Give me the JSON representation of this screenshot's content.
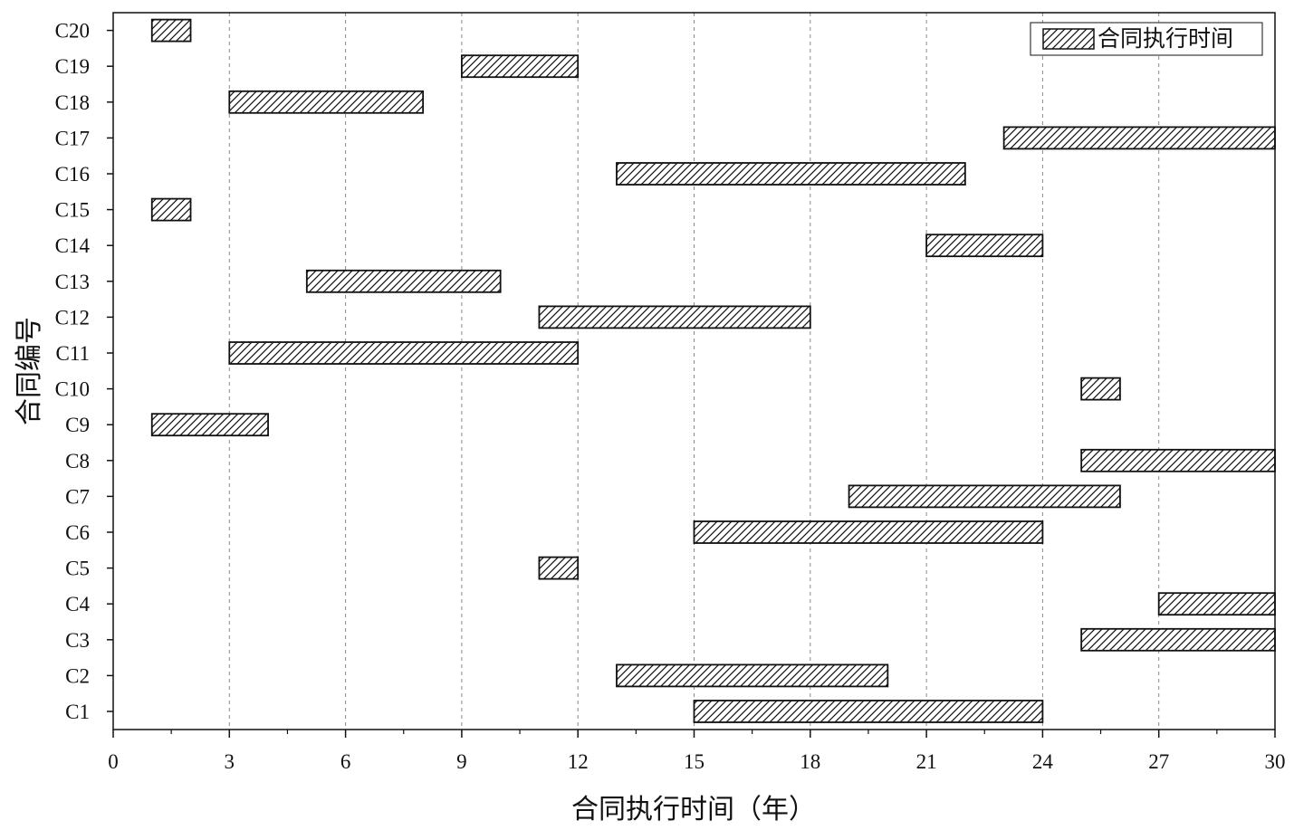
{
  "chart_data": {
    "type": "bar",
    "orientation": "horizontal-range",
    "xlabel": "合同执行时间（年）",
    "ylabel": "合同编号",
    "xlim": [
      0,
      30
    ],
    "xticks": [
      0,
      3,
      6,
      9,
      12,
      15,
      18,
      21,
      24,
      27,
      30
    ],
    "grid": "vertical dashed",
    "legend_position": "top-right",
    "series": [
      {
        "name": "合同执行时间",
        "fill": "diagonal-hatch",
        "data": [
          {
            "label": "C1",
            "start": 15,
            "end": 24
          },
          {
            "label": "C2",
            "start": 13,
            "end": 20
          },
          {
            "label": "C3",
            "start": 25,
            "end": 30
          },
          {
            "label": "C4",
            "start": 27,
            "end": 30
          },
          {
            "label": "C5",
            "start": 11,
            "end": 12
          },
          {
            "label": "C6",
            "start": 15,
            "end": 24
          },
          {
            "label": "C7",
            "start": 19,
            "end": 26
          },
          {
            "label": "C8",
            "start": 25,
            "end": 30
          },
          {
            "label": "C9",
            "start": 1,
            "end": 4
          },
          {
            "label": "C10",
            "start": 25,
            "end": 26
          },
          {
            "label": "C11",
            "start": 3,
            "end": 12
          },
          {
            "label": "C12",
            "start": 11,
            "end": 18
          },
          {
            "label": "C13",
            "start": 5,
            "end": 10
          },
          {
            "label": "C14",
            "start": 21,
            "end": 24
          },
          {
            "label": "C15",
            "start": 1,
            "end": 2
          },
          {
            "label": "C16",
            "start": 13,
            "end": 22
          },
          {
            "label": "C17",
            "start": 23,
            "end": 30
          },
          {
            "label": "C18",
            "start": 3,
            "end": 8
          },
          {
            "label": "C19",
            "start": 9,
            "end": 12
          },
          {
            "label": "C20",
            "start": 1,
            "end": 2
          }
        ]
      }
    ]
  },
  "colors": {
    "axis": "#111111",
    "grid": "#8a8a8a",
    "bar_stroke": "#111111",
    "hatch": "#111111",
    "background": "#ffffff"
  }
}
